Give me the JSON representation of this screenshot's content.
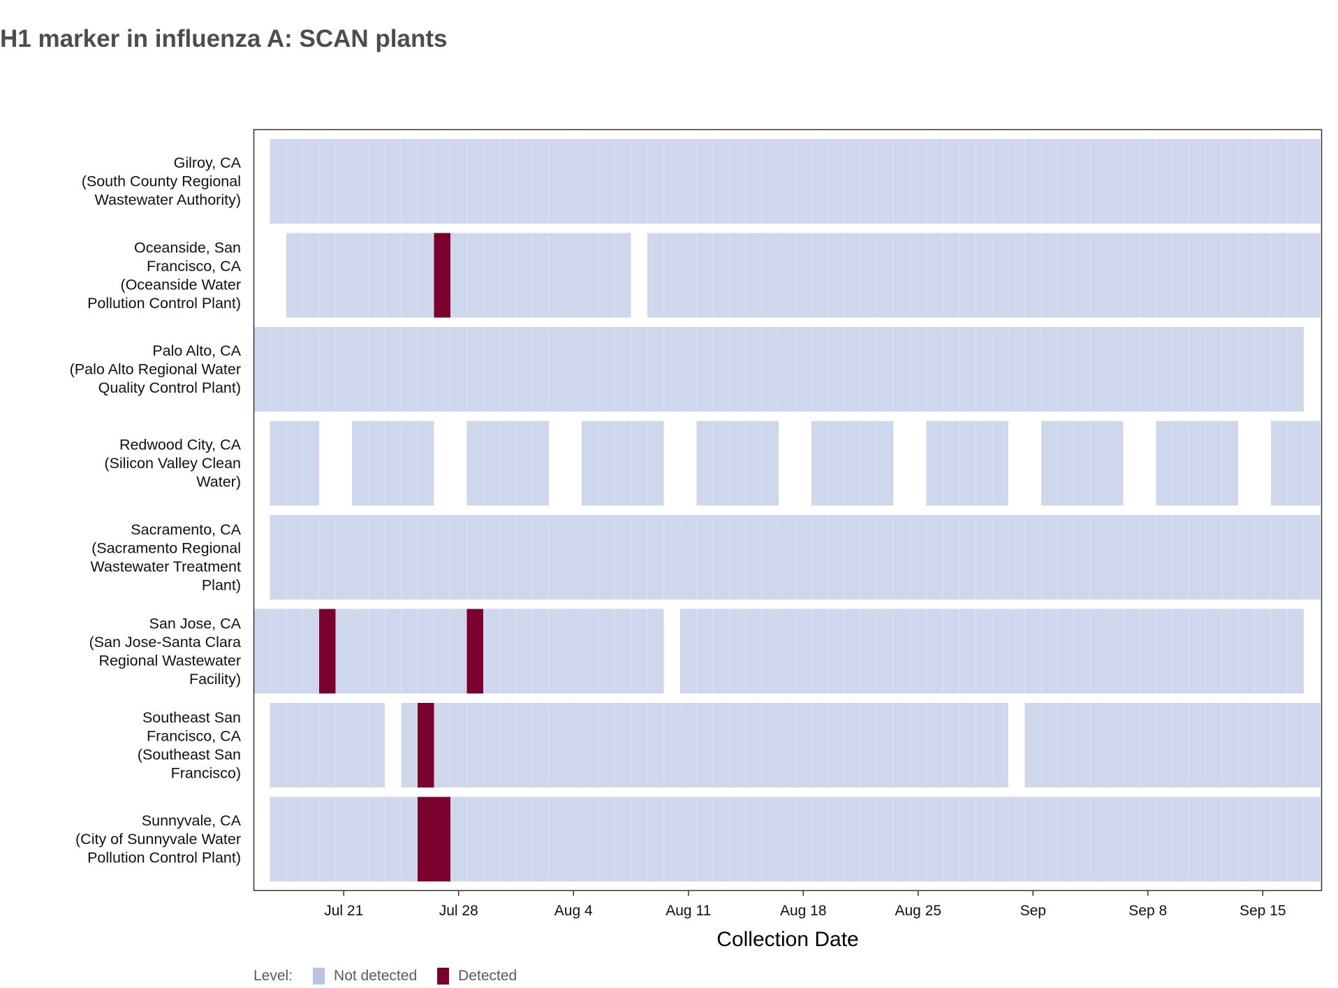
{
  "chart_data": {
    "type": "heatmap",
    "title": "H1 marker in influenza A: SCAN plants",
    "xlabel": "Collection Date",
    "ylabel": "",
    "x_start": "2024-07-16",
    "x_end": "2024-09-19",
    "x_ticks": [
      "Jul 21",
      "Jul 28",
      "Aug 4",
      "Aug 11",
      "Aug 18",
      "Aug 25",
      "Sep",
      "Sep 8",
      "Sep 15"
    ],
    "tick_dates": [
      "2024-07-21",
      "2024-07-28",
      "2024-08-04",
      "2024-08-11",
      "2024-08-18",
      "2024-08-25",
      "2024-09-01",
      "2024-09-08",
      "2024-09-15"
    ],
    "legend": {
      "title": "Level:",
      "position": "bottom-left",
      "items": [
        {
          "label": "Not detected",
          "color": "#b7c4e5"
        },
        {
          "label": "Detected",
          "color": "#7a002d"
        }
      ]
    },
    "colors": {
      "not_detected": "#ced7ec",
      "detected": "#7a002d",
      "panel_border": "#333333"
    },
    "series": [
      {
        "site": "Gilroy, CA",
        "plant": [
          "(South County Regional",
          "Wastewater Authority)"
        ],
        "not_detected_ranges": [
          [
            "2024-07-17",
            "2024-09-18"
          ]
        ],
        "detected_dates": []
      },
      {
        "site_lines": [
          "Oceanside, San",
          "Francisco, CA"
        ],
        "plant": [
          "(Oceanside Water",
          "Pollution Control Plant)"
        ],
        "not_detected_ranges": [
          [
            "2024-07-18",
            "2024-08-07"
          ],
          [
            "2024-08-09",
            "2024-09-18"
          ]
        ],
        "detected_dates": [
          "2024-07-27"
        ]
      },
      {
        "site": "Palo Alto, CA",
        "plant": [
          "(Palo Alto Regional Water",
          "Quality Control Plant)"
        ],
        "not_detected_ranges": [
          [
            "2024-07-16",
            "2024-09-17"
          ]
        ],
        "detected_dates": []
      },
      {
        "site": "Redwood City, CA",
        "plant": [
          "(Silicon Valley Clean",
          "Water)"
        ],
        "not_detected_ranges": [
          [
            "2024-07-17",
            "2024-07-19"
          ],
          [
            "2024-07-22",
            "2024-07-26"
          ],
          [
            "2024-07-29",
            "2024-08-02"
          ],
          [
            "2024-08-05",
            "2024-08-09"
          ],
          [
            "2024-08-12",
            "2024-08-16"
          ],
          [
            "2024-08-19",
            "2024-08-23"
          ],
          [
            "2024-08-26",
            "2024-08-30"
          ],
          [
            "2024-09-02",
            "2024-09-06"
          ],
          [
            "2024-09-09",
            "2024-09-13"
          ],
          [
            "2024-09-16",
            "2024-09-18"
          ]
        ],
        "detected_dates": []
      },
      {
        "site": "Sacramento, CA",
        "plant": [
          "(Sacramento Regional",
          "Wastewater Treatment",
          "Plant)"
        ],
        "not_detected_ranges": [
          [
            "2024-07-17",
            "2024-09-18"
          ]
        ],
        "detected_dates": []
      },
      {
        "site": "San Jose, CA",
        "plant": [
          "(San Jose-Santa Clara",
          "Regional Wastewater",
          "Facility)"
        ],
        "not_detected_ranges": [
          [
            "2024-07-16",
            "2024-08-09"
          ],
          [
            "2024-08-11",
            "2024-09-17"
          ]
        ],
        "detected_dates": [
          "2024-07-20",
          "2024-07-29"
        ]
      },
      {
        "site_lines": [
          "Southeast San",
          "Francisco, CA"
        ],
        "plant": [
          "(Southeast San",
          "Francisco)"
        ],
        "not_detected_ranges": [
          [
            "2024-07-17",
            "2024-07-23"
          ],
          [
            "2024-07-25",
            "2024-08-30"
          ],
          [
            "2024-09-01",
            "2024-09-18"
          ]
        ],
        "detected_dates": [
          "2024-07-26"
        ]
      },
      {
        "site": "Sunnyvale, CA",
        "plant": [
          "(City of Sunnyvale Water",
          "Pollution Control Plant)"
        ],
        "not_detected_ranges": [
          [
            "2024-07-17",
            "2024-09-18"
          ]
        ],
        "detected_dates": [
          "2024-07-26",
          "2024-07-27"
        ]
      }
    ]
  }
}
